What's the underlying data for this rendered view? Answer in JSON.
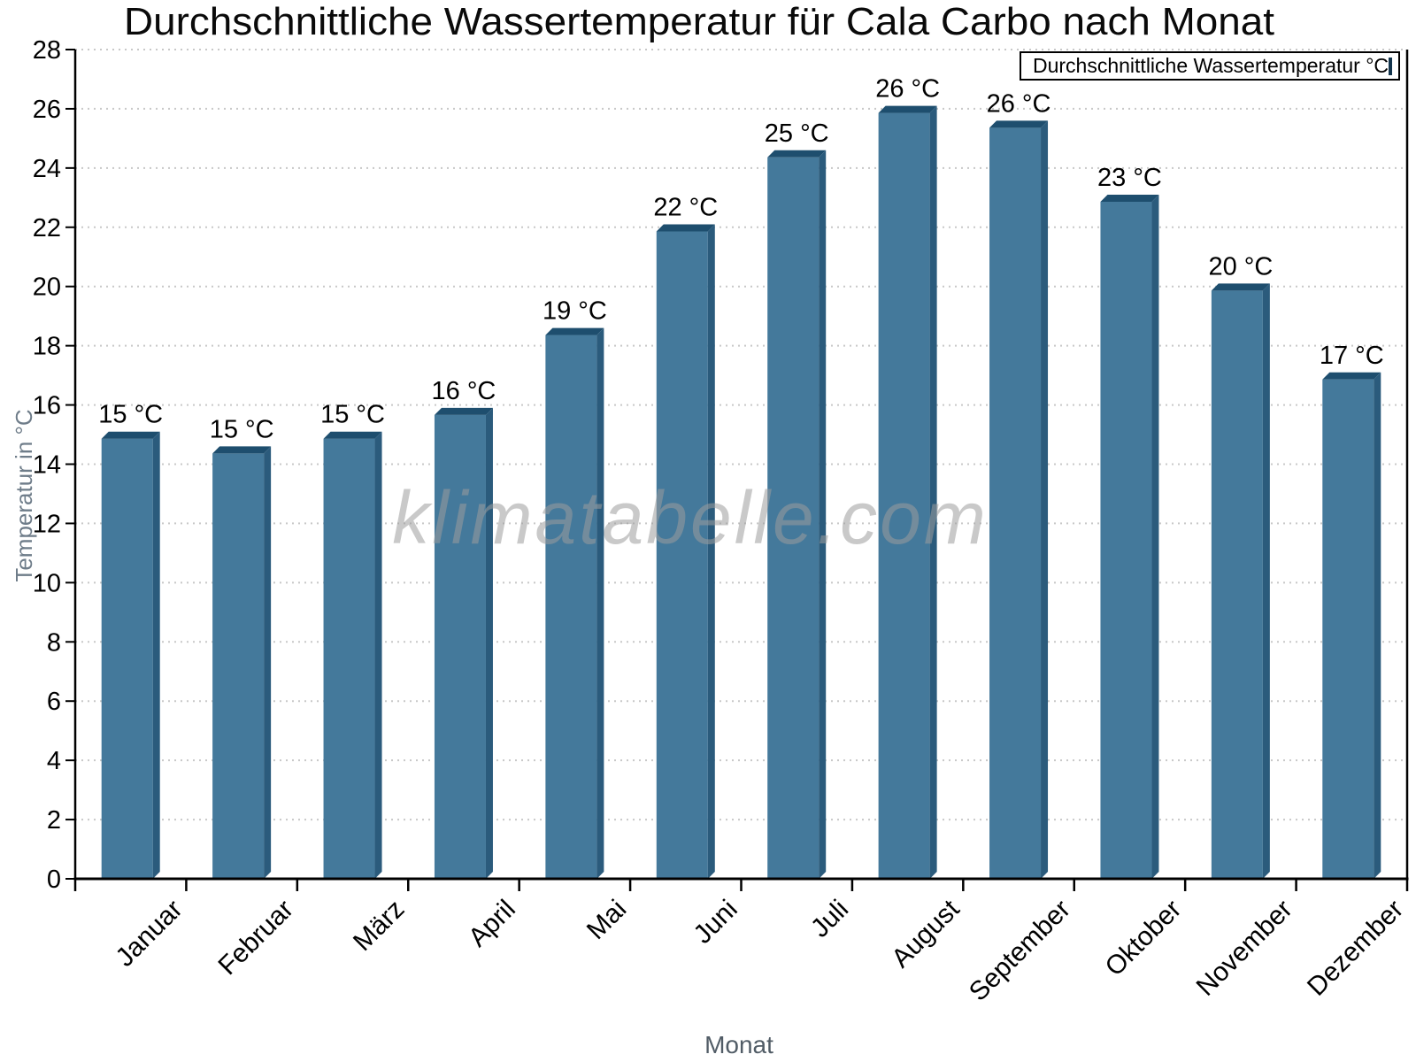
{
  "chart_data": {
    "type": "bar",
    "title": "Durchschnittliche Wassertemperatur für Cala Carbo nach Monat",
    "xlabel": "Monat",
    "ylabel": "Temperatur in °C",
    "categories": [
      "Januar",
      "Februar",
      "März",
      "April",
      "Mai",
      "Juni",
      "Juli",
      "August",
      "September",
      "Oktober",
      "November",
      "Dezember"
    ],
    "series": [
      {
        "name": "Durchschnittliche Wassertemperatur °C",
        "values": [
          15.1,
          14.6,
          15.1,
          15.9,
          18.6,
          22.1,
          24.6,
          26.1,
          25.6,
          23.1,
          20.1,
          17.1
        ]
      }
    ],
    "bar_value_labels": [
      "15 °C",
      "15 °C",
      "15 °C",
      "16 °C",
      "19 °C",
      "22 °C",
      "25 °C",
      "26 °C",
      "26 °C",
      "23 °C",
      "20 °C",
      "17 °C"
    ],
    "ylim": [
      0,
      28
    ],
    "ytick_step": 2,
    "ytick_labels": [
      "0",
      "2",
      "4",
      "6",
      "8",
      "10",
      "12",
      "14",
      "16",
      "18",
      "20",
      "22",
      "24",
      "26",
      "28"
    ],
    "grid": "horizontal-dotted",
    "legend_position": "top-right",
    "watermark": "klimatabelle.com",
    "colors": {
      "bar_face": "#44799b",
      "bar_top": "#1e4e6e",
      "bar_side": "#2b5b7c",
      "grid": "#c8c8c8",
      "axis": "#000000",
      "tick_label": "#000000",
      "value_label": "#000000",
      "axis_title_y": "#6e7c89",
      "axis_title_x": "#515c66",
      "watermark": "#9d9d9d",
      "title": "#0a0a0a"
    }
  }
}
